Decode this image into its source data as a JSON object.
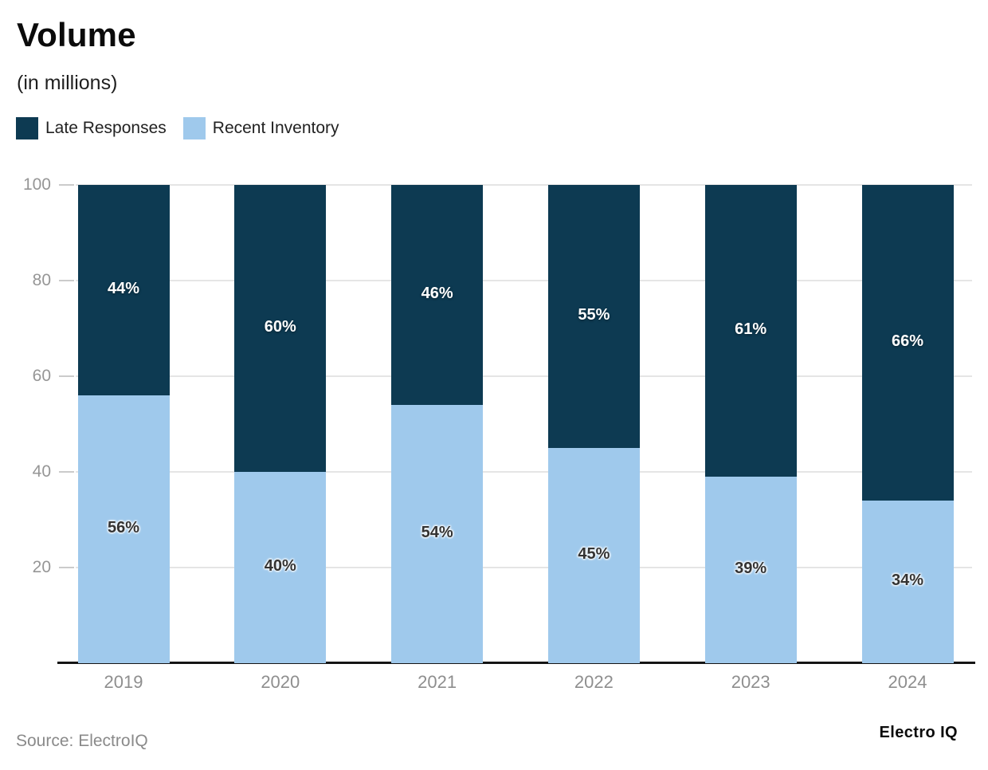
{
  "header": {
    "title": "Volume",
    "subtitle": "(in millions)"
  },
  "legend": [
    {
      "label": "Late Responses",
      "color": "#0d3a52"
    },
    {
      "label": "Recent Inventory",
      "color": "#9fc9ec"
    }
  ],
  "chart_data": {
    "type": "bar",
    "stacked": true,
    "title": "Volume",
    "subtitle": "(in millions)",
    "categories": [
      "2019",
      "2020",
      "2021",
      "2022",
      "2023",
      "2024"
    ],
    "series": [
      {
        "name": "Recent Inventory",
        "color": "#9fc9ec",
        "values": [
          56,
          40,
          54,
          45,
          39,
          34
        ],
        "labels": [
          "56%",
          "40%",
          "54%",
          "45%",
          "39%",
          "34%"
        ],
        "label_style": "on-light"
      },
      {
        "name": "Late Responses",
        "color": "#0d3a52",
        "values": [
          44,
          60,
          46,
          55,
          61,
          66
        ],
        "labels": [
          "44%",
          "60%",
          "46%",
          "55%",
          "61%",
          "66%"
        ],
        "label_style": "on-dark"
      }
    ],
    "xlabel": "",
    "ylabel": "",
    "ylim": [
      0,
      100
    ],
    "yticks": [
      20,
      40,
      60,
      80,
      100
    ],
    "grid": true,
    "legend_position": "top-left"
  },
  "colors": {
    "grid": "#e5e5e5",
    "tick": "#cbcbcb",
    "axis_text": "#969696",
    "baseline": "#151515"
  },
  "footer": {
    "source": "Source: ElectroIQ",
    "brand": "Electro IQ"
  }
}
